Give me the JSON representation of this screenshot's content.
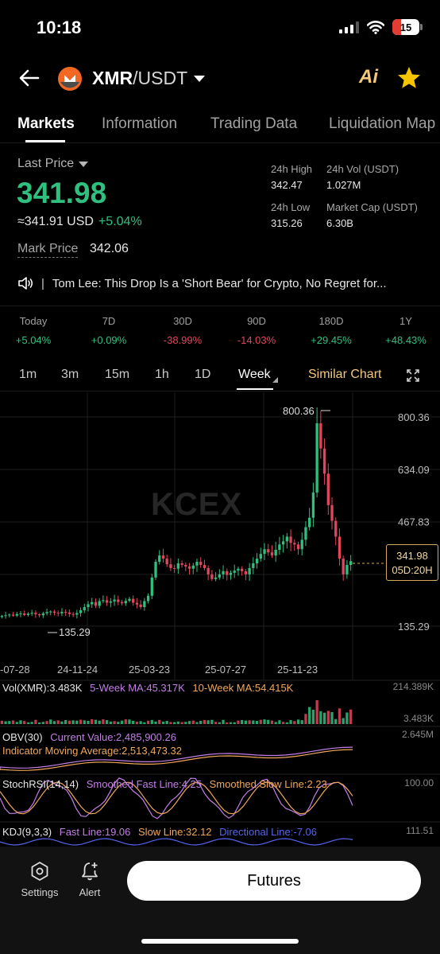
{
  "status_bar": {
    "time": "10:18",
    "battery": "15"
  },
  "header": {
    "base": "XMR",
    "quote": "/USDT",
    "ai_label": "Ai"
  },
  "tabs": [
    "Markets",
    "Information",
    "Trading Data",
    "Liquidation Map"
  ],
  "price": {
    "label": "Last Price",
    "value": "341.98",
    "usd": "≈341.91 USD",
    "change": "+5.04%",
    "mark_label": "Mark Price",
    "mark_value": "342.06"
  },
  "stats": {
    "high_label": "24h High",
    "high": "342.47",
    "vol_label": "24h Vol (USDT)",
    "vol": "1.027M",
    "low_label": "24h Low",
    "low": "315.26",
    "cap_label": "Market Cap (USDT)",
    "cap": "6.30B"
  },
  "news": {
    "separator": "|",
    "text": "Tom Lee: This Drop Is a 'Short Bear' for Crypto, No Regret for..."
  },
  "periods": [
    {
      "label": "Today",
      "value": "+5.04%",
      "dir": "up"
    },
    {
      "label": "7D",
      "value": "+0.09%",
      "dir": "up"
    },
    {
      "label": "30D",
      "value": "-38.99%",
      "dir": "down"
    },
    {
      "label": "90D",
      "value": "-14.03%",
      "dir": "down"
    },
    {
      "label": "180D",
      "value": "+29.45%",
      "dir": "up"
    },
    {
      "label": "1Y",
      "value": "+48.43%",
      "dir": "up"
    }
  ],
  "intervals": [
    "1m",
    "3m",
    "15m",
    "1h",
    "1D",
    "Week"
  ],
  "similar_chart": "Similar Chart",
  "watermark": "KCEX",
  "chart_data": {
    "type": "candlestick",
    "y_ticks": [
      800.36,
      634.09,
      467.83,
      135.29
    ],
    "y_tick_labels": [
      "800.36",
      "634.09",
      "467.83",
      "135.29"
    ],
    "x_tick_labels": [
      "-07-28",
      "24-11-24",
      "25-03-23",
      "25-07-27",
      "25-11-23"
    ],
    "max_label": "800.36",
    "min_label": "135.29",
    "current_price": "341.98",
    "countdown": "05D:20H",
    "closes": [
      168,
      170,
      172,
      169,
      174,
      176,
      171,
      175,
      178,
      173,
      170,
      176,
      180,
      182,
      178,
      176,
      181,
      179,
      174,
      172,
      177,
      186,
      196,
      205,
      212,
      200,
      215,
      218,
      210,
      214,
      220,
      212,
      208,
      216,
      222,
      210,
      204,
      196,
      215,
      232,
      290,
      340,
      360,
      350,
      332,
      320,
      318,
      335,
      330,
      325,
      318,
      328,
      340,
      330,
      320,
      300,
      285,
      290,
      300,
      310,
      298,
      305,
      312,
      318,
      310,
      300,
      320,
      335,
      350,
      365,
      380,
      370,
      360,
      378,
      395,
      405,
      420,
      400,
      395,
      380,
      410,
      450,
      480,
      560,
      780,
      700,
      620,
      520,
      470,
      420,
      350,
      300,
      330,
      341.98
    ],
    "y_domain": [
      100,
      830
    ],
    "colors": {
      "up": "#2fc07f",
      "down": "#e2455c"
    }
  },
  "indicators": {
    "vol": {
      "name": "Vol(XMR):3.483K",
      "ma5": "5-Week MA:45.317K",
      "ma10": "10-Week MA:54.415K",
      "right_top": "214.389K",
      "right_bottom": "3.483K"
    },
    "obv": {
      "name": "OBV(30)",
      "current": "Current Value:2,485,900.26",
      "ma": "Indicator Moving Average:2,513,473.32",
      "right": "2.645M"
    },
    "stoch": {
      "name": "StochRSI(14,14)",
      "fast": "Smoothed Fast Line:4.25",
      "slow": "Smoothed Slow Line:2.23",
      "right": "100.00"
    },
    "kdj": {
      "name": "KDJ(9,3,3)",
      "fast": "Fast Line:19.06",
      "slow": "Slow Line:32.12",
      "dir": "Directional Line:-7.06",
      "right": "111.51"
    }
  },
  "bottom": {
    "settings": "Settings",
    "alert": "Alert",
    "futures": "Futures"
  }
}
